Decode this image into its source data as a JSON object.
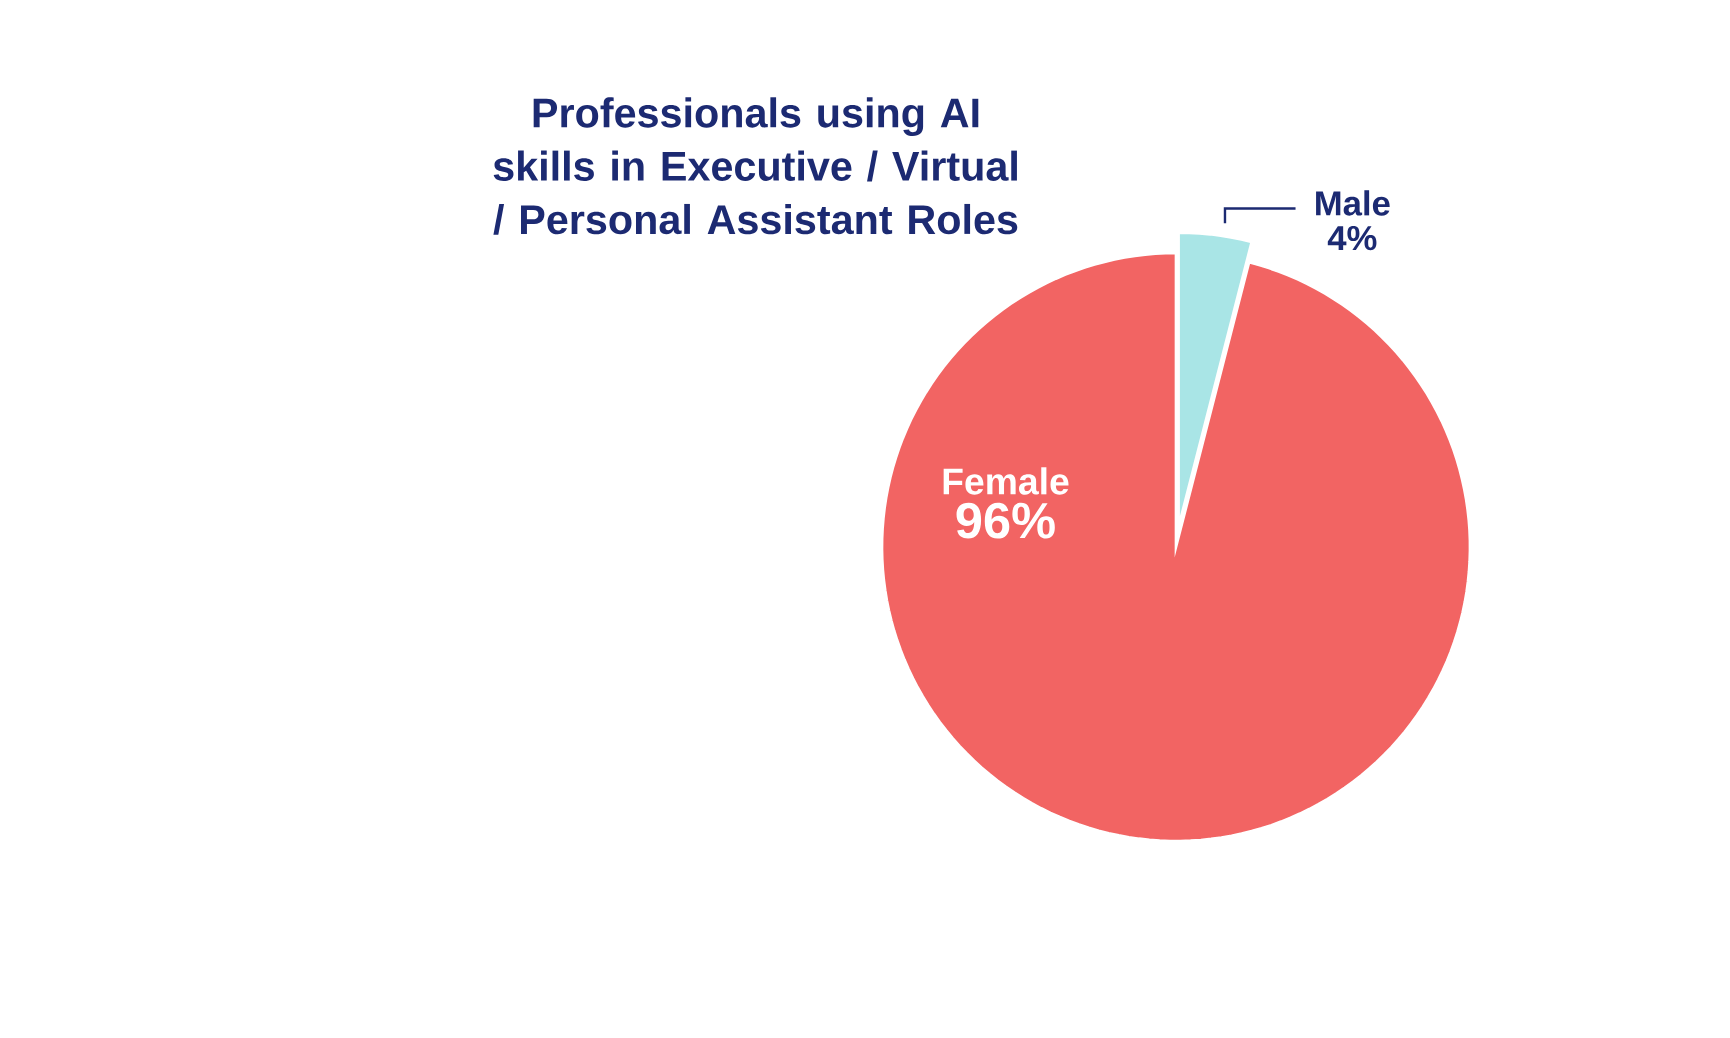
{
  "chart_data": {
    "type": "pie",
    "title": "Professionals using AI skills in Executive / Virtual / Personal Assistant Roles",
    "categories": [
      "Female",
      "Male"
    ],
    "values": [
      96,
      4
    ],
    "colors": [
      "#f26463",
      "#a9e5e6"
    ],
    "value_labels": [
      "96%",
      "4%"
    ]
  }
}
